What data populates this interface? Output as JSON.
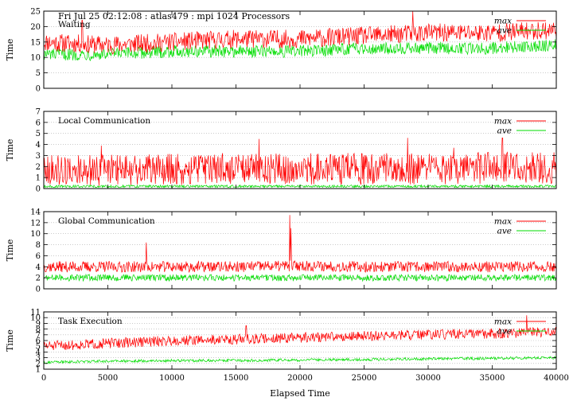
{
  "header": "Fri Jul 25 02:12:08 : atlas479 : mpi 1024 Processors",
  "colors": {
    "max": "#ff0000",
    "ave": "#00dd00",
    "grid": "#aaaaaa",
    "axis": "#000000"
  },
  "chart_data": [
    {
      "type": "line",
      "title": "Waiting",
      "ylabel": "Time",
      "xlabel": "",
      "xlim": [
        0,
        40000
      ],
      "ylim": [
        0,
        25
      ],
      "yticks": [
        0,
        5,
        10,
        15,
        20,
        25
      ],
      "xticks": [
        0,
        5000,
        10000,
        15000,
        20000,
        25000,
        30000,
        35000,
        40000
      ],
      "show_xtick_labels": false,
      "grid": "horizontal dotted",
      "legend": "top-right",
      "x": [
        0,
        5000,
        10000,
        15000,
        20000,
        25000,
        30000,
        35000,
        40000
      ],
      "series": [
        {
          "name": "max",
          "values": [
            15,
            14,
            15,
            16,
            16,
            17,
            18,
            18,
            19
          ]
        },
        {
          "name": "ave",
          "values": [
            11,
            11,
            12,
            12,
            12,
            13,
            13,
            13,
            14
          ]
        }
      ]
    },
    {
      "type": "line",
      "title": "Local Communication",
      "ylabel": "Time",
      "xlabel": "",
      "xlim": [
        0,
        40000
      ],
      "ylim": [
        0,
        7
      ],
      "yticks": [
        0,
        1,
        2,
        3,
        4,
        5,
        6,
        7
      ],
      "xticks": [
        0,
        5000,
        10000,
        15000,
        20000,
        25000,
        30000,
        35000,
        40000
      ],
      "show_xtick_labels": false,
      "grid": "horizontal dotted",
      "legend": "top-right",
      "x": [
        0,
        5000,
        10000,
        15000,
        20000,
        25000,
        30000,
        35000,
        40000
      ],
      "series": [
        {
          "name": "max",
          "values": [
            1.6,
            1.7,
            1.7,
            1.8,
            1.8,
            1.8,
            1.8,
            1.9,
            1.9
          ]
        },
        {
          "name": "ave",
          "values": [
            0.2,
            0.2,
            0.2,
            0.2,
            0.2,
            0.2,
            0.2,
            0.2,
            0.2
          ]
        }
      ]
    },
    {
      "type": "line",
      "title": "Global Communication",
      "ylabel": "Time",
      "xlabel": "",
      "xlim": [
        0,
        40000
      ],
      "ylim": [
        0,
        14
      ],
      "yticks": [
        0,
        2,
        4,
        6,
        8,
        10,
        12,
        14
      ],
      "xticks": [
        0,
        5000,
        10000,
        15000,
        20000,
        25000,
        30000,
        35000,
        40000
      ],
      "show_xtick_labels": false,
      "grid": "horizontal dotted",
      "legend": "top-right",
      "x": [
        0,
        5000,
        10000,
        15000,
        20000,
        25000,
        30000,
        35000,
        40000
      ],
      "series": [
        {
          "name": "max",
          "values": [
            4.0,
            4.0,
            4.0,
            4.0,
            4.2,
            4.0,
            4.0,
            4.0,
            4.0
          ]
        },
        {
          "name": "ave",
          "values": [
            2.0,
            2.0,
            2.0,
            2.0,
            2.0,
            2.0,
            2.0,
            2.0,
            2.0
          ]
        }
      ]
    },
    {
      "type": "line",
      "title": "Task Execution",
      "ylabel": "Time",
      "xlabel": "Elapsed Time",
      "xlim": [
        0,
        40000
      ],
      "ylim": [
        1,
        11
      ],
      "yticks": [
        1,
        2,
        3,
        4,
        5,
        6,
        7,
        8,
        9,
        10,
        11
      ],
      "xticks": [
        0,
        5000,
        10000,
        15000,
        20000,
        25000,
        30000,
        35000,
        40000
      ],
      "show_xtick_labels": true,
      "grid": "horizontal dotted",
      "legend": "top-right",
      "x": [
        0,
        5000,
        10000,
        15000,
        20000,
        25000,
        30000,
        35000,
        40000
      ],
      "series": [
        {
          "name": "max",
          "values": [
            5.0,
            5.5,
            6.0,
            6.2,
            6.5,
            6.8,
            7.0,
            7.2,
            7.5
          ]
        },
        {
          "name": "ave",
          "values": [
            2.2,
            2.4,
            2.5,
            2.5,
            2.6,
            2.7,
            2.8,
            2.9,
            3.0
          ]
        }
      ]
    }
  ]
}
